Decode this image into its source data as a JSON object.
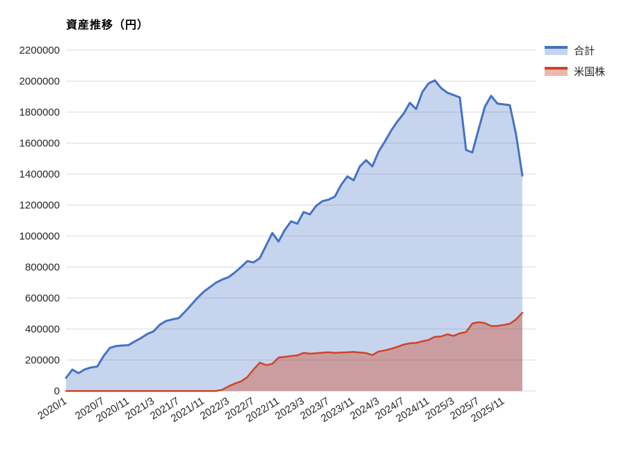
{
  "title": "資産推移（円）",
  "colors": {
    "total_line": "#4472c4",
    "total_fill": "rgba(68,114,196,0.30)",
    "us_line": "#cf4426",
    "us_fill": "rgba(207,68,38,0.38)",
    "grid": "#d9d9d9",
    "text": "#262626"
  },
  "legend": [
    {
      "label": "合計"
    },
    {
      "label": "米国株"
    }
  ],
  "chart_data": {
    "type": "area",
    "title": "資産推移（円）",
    "xlabel": "",
    "ylabel": "",
    "ylim": [
      0,
      2200000
    ],
    "y_ticks": [
      0,
      200000,
      400000,
      600000,
      800000,
      1000000,
      1200000,
      1400000,
      1600000,
      1800000,
      2000000,
      2200000
    ],
    "grid": "horizontal",
    "legend_position": "top-right",
    "categories": [
      "2020/1",
      "2020/2",
      "2020/3",
      "2020/4",
      "2020/5",
      "2020/6",
      "2020/7",
      "2020/8",
      "2020/9",
      "2020/10",
      "2020/11",
      "2020/12",
      "2021/1",
      "2021/2",
      "2021/3",
      "2021/4",
      "2021/5",
      "2021/6",
      "2021/7",
      "2021/8",
      "2021/9",
      "2021/10",
      "2021/11",
      "2021/12",
      "2022/1",
      "2022/2",
      "2022/3",
      "2022/4",
      "2022/5",
      "2022/6",
      "2022/7",
      "2022/8",
      "2022/9",
      "2022/10",
      "2022/11",
      "2022/12",
      "2023/1",
      "2023/2",
      "2023/3",
      "2023/4",
      "2023/5",
      "2023/6",
      "2023/7",
      "2023/8",
      "2023/9",
      "2023/10",
      "2023/11",
      "2023/12",
      "2024/1",
      "2024/2",
      "2024/3",
      "2024/4",
      "2024/5",
      "2024/6",
      "2024/7",
      "2024/8",
      "2024/9",
      "2024/10",
      "2024/11",
      "2024/12",
      "2025/1",
      "2025/2",
      "2025/3",
      "2025/4",
      "2025/5",
      "2025/6",
      "2025/7",
      "2025/8",
      "2025/9",
      "2025/10",
      "2025/11",
      "2025/12",
      "2026/1",
      "2026/2"
    ],
    "x_tick_labels": [
      "2020/1",
      "2020/7",
      "2020/11",
      "2021/3",
      "2021/7",
      "2021/11",
      "2022/3",
      "2022/7",
      "2022/11",
      "2023/3",
      "2023/7",
      "2023/11",
      "2024/3",
      "2024/7",
      "2024/11",
      "2025/3",
      "2025/7",
      "2025/11"
    ],
    "x_tick_indices": [
      0,
      6,
      10,
      14,
      18,
      22,
      26,
      30,
      34,
      38,
      42,
      46,
      50,
      54,
      58,
      62,
      66,
      70
    ],
    "series": [
      {
        "name": "合計",
        "values": [
          85000,
          138000,
          115000,
          140000,
          152000,
          158000,
          225000,
          278000,
          290000,
          294000,
          296000,
          320000,
          342000,
          368000,
          385000,
          428000,
          452000,
          462000,
          470000,
          510000,
          555000,
          600000,
          640000,
          670000,
          700000,
          720000,
          735000,
          765000,
          800000,
          838000,
          830000,
          858000,
          940000,
          1020000,
          965000,
          1040000,
          1095000,
          1080000,
          1155000,
          1140000,
          1195000,
          1225000,
          1235000,
          1255000,
          1330000,
          1385000,
          1360000,
          1450000,
          1490000,
          1450000,
          1545000,
          1610000,
          1680000,
          1740000,
          1790000,
          1860000,
          1820000,
          1930000,
          1985000,
          2005000,
          1955000,
          1925000,
          1910000,
          1895000,
          1555000,
          1540000,
          1690000,
          1835000,
          1905000,
          1855000,
          1850000,
          1845000,
          1655000,
          1390000
        ]
      },
      {
        "name": "米国株",
        "values": [
          0,
          0,
          0,
          0,
          0,
          0,
          0,
          0,
          0,
          0,
          0,
          0,
          0,
          0,
          0,
          0,
          0,
          0,
          0,
          0,
          0,
          0,
          0,
          0,
          0,
          8000,
          30000,
          48000,
          62000,
          90000,
          140000,
          183000,
          167000,
          175000,
          216000,
          220000,
          226000,
          230000,
          246000,
          241000,
          244000,
          247000,
          250000,
          246000,
          248000,
          250000,
          252000,
          248000,
          245000,
          232000,
          255000,
          262000,
          272000,
          285000,
          300000,
          308000,
          310000,
          321000,
          330000,
          350000,
          352000,
          366000,
          356000,
          372000,
          380000,
          436000,
          444000,
          438000,
          420000,
          420000,
          426000,
          434000,
          462000,
          505000
        ]
      }
    ]
  }
}
